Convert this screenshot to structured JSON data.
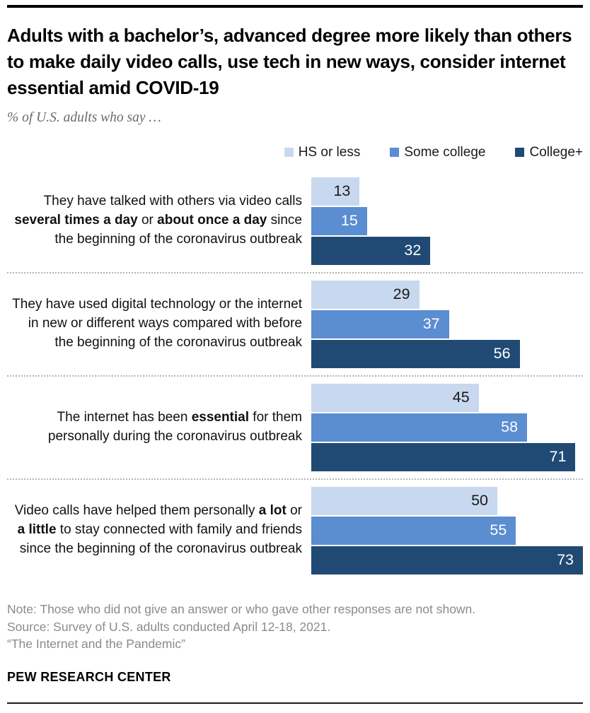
{
  "page": {
    "title": "Adults with a bachelor’s, advanced degree more likely than others to make daily video calls, use tech in new ways, consider internet essential amid COVID-19",
    "subtitle": "% of U.S. adults who say …",
    "note": "Note: Those who did not give an answer or who gave other responses are not shown.",
    "source": "Source: Survey of U.S. adults conducted April 12-18, 2021.",
    "report": "“The Internet and the Pandemic”",
    "footer": "PEW RESEARCH CENTER"
  },
  "chart_data": {
    "type": "bar",
    "orientation": "horizontal",
    "title": "Adults with a bachelor’s, advanced degree more likely than others to make daily video calls, use tech in new ways, consider internet essential amid COVID-19",
    "subtitle": "% of U.S. adults who say …",
    "legend_position": "top-right",
    "grid": false,
    "scale_max": 73,
    "series": [
      "HS or less",
      "Some college",
      "College+"
    ],
    "series_colors": {
      "HS or less": "#C8D8EE",
      "Some college": "#5B8DD1",
      "College+": "#204A73"
    },
    "value_label_colors": {
      "on_light": "#1a1a1a",
      "on_dark": "#ffffff"
    },
    "categories": [
      "They have talked with others via video calls several times a day or about once a day since the beginning of the coronavirus outbreak",
      "They have used digital technology or the internet in new or different ways compared with before the beginning of the coronavirus outbreak",
      "The internet has been essential for them personally during the coronavirus outbreak",
      "Video calls have helped them personally a lot or a little to stay connected with family and friends since the beginning of the coronavirus outbreak"
    ],
    "rows": [
      {
        "label_parts": [
          {
            "t": "They have talked with others via video calls ",
            "b": false
          },
          {
            "t": "several times a day",
            "b": true
          },
          {
            "t": " or ",
            "b": false
          },
          {
            "t": "about once a day",
            "b": true
          },
          {
            "t": " since the beginning of the coronavirus outbreak",
            "b": false
          }
        ],
        "values": [
          13,
          15,
          32
        ]
      },
      {
        "label_parts": [
          {
            "t": "They have used digital technology or the internet in new or different ways compared with before the beginning of the coronavirus outbreak",
            "b": false
          }
        ],
        "values": [
          29,
          37,
          56
        ]
      },
      {
        "label_parts": [
          {
            "t": "The internet has been ",
            "b": false
          },
          {
            "t": "essential",
            "b": true
          },
          {
            "t": " for them personally during the coronavirus outbreak",
            "b": false
          }
        ],
        "values": [
          45,
          58,
          71
        ]
      },
      {
        "label_parts": [
          {
            "t": "Video calls have helped them personally ",
            "b": false
          },
          {
            "t": "a lot",
            "b": true
          },
          {
            "t": " or ",
            "b": false
          },
          {
            "t": "a little",
            "b": true
          },
          {
            "t": " to stay connected with family and friends since the beginning of the coronavirus outbreak",
            "b": false
          }
        ],
        "values": [
          50,
          55,
          73
        ]
      }
    ]
  }
}
